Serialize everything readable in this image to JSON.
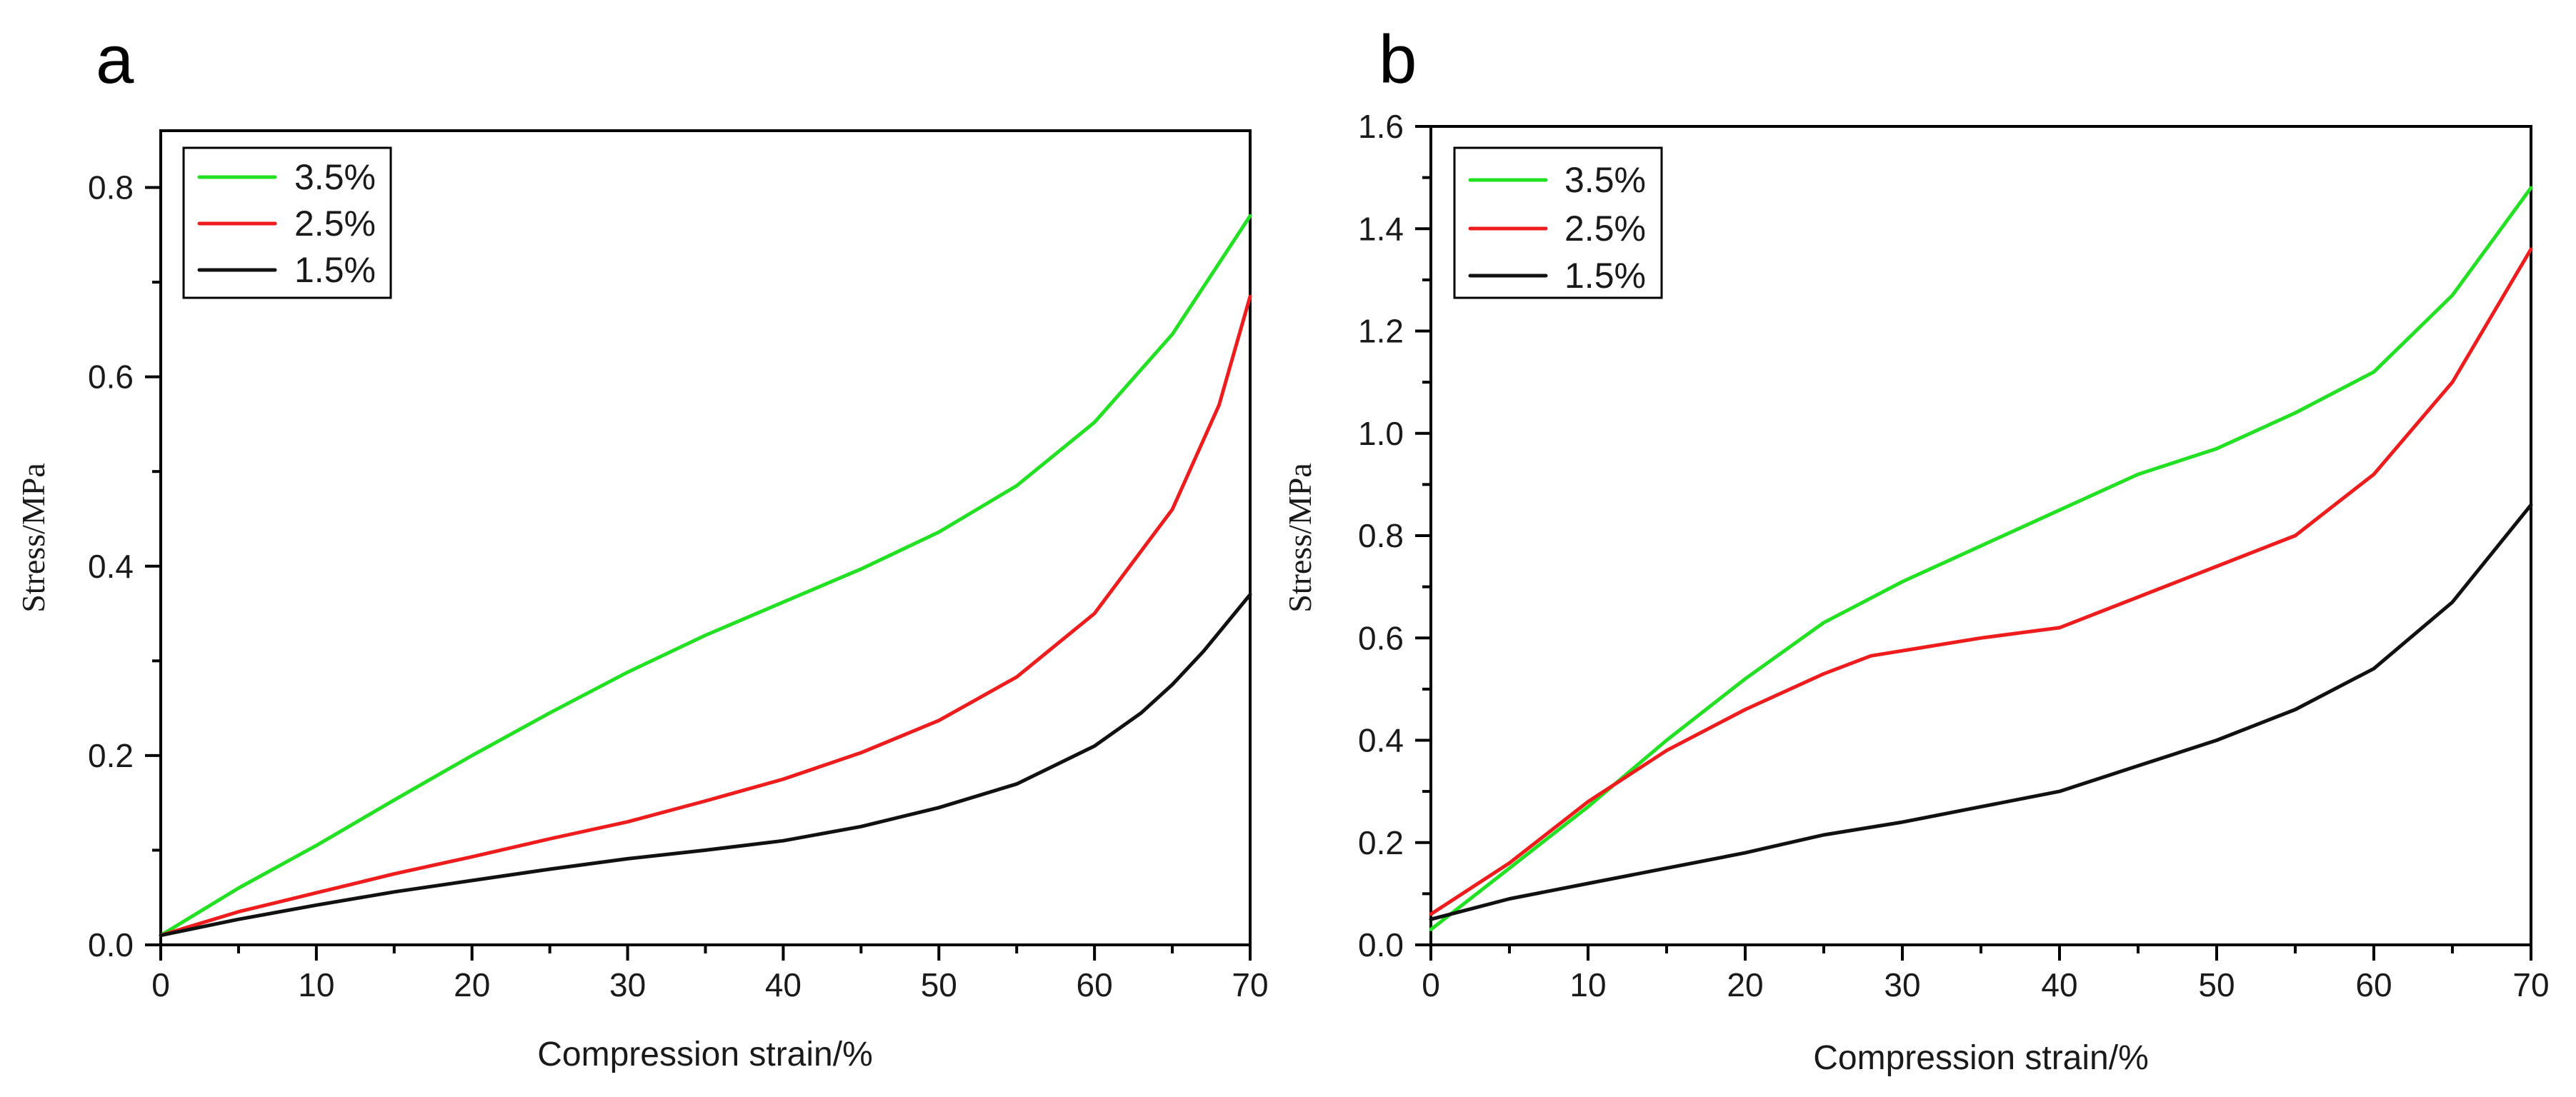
{
  "chart_data": [
    {
      "panel": "a",
      "type": "line",
      "xlabel": "Compression strain/%",
      "ylabel": "Stress/MPa",
      "xlim": [
        0,
        70
      ],
      "ylim": [
        0,
        0.86
      ],
      "xticks": [
        0,
        10,
        20,
        30,
        40,
        50,
        60,
        70
      ],
      "yticks": [
        0.0,
        0.2,
        0.4,
        0.6,
        0.8
      ],
      "xtick_labels": [
        "0",
        "10",
        "20",
        "30",
        "40",
        "50",
        "60",
        "70"
      ],
      "ytick_labels": [
        "0.0",
        "0.2",
        "0.4",
        "0.6",
        "0.8"
      ],
      "legend_position": "top-left",
      "series": [
        {
          "name": "3.5%",
          "color": "#22e022",
          "x": [
            0,
            5,
            10,
            15,
            20,
            25,
            30,
            35,
            40,
            45,
            50,
            55,
            60,
            65,
            70
          ],
          "y": [
            0.01,
            0.06,
            0.105,
            0.153,
            0.2,
            0.245,
            0.288,
            0.327,
            0.362,
            0.397,
            0.436,
            0.485,
            0.552,
            0.645,
            0.77
          ]
        },
        {
          "name": "2.5%",
          "color": "#ee1c1c",
          "x": [
            0,
            5,
            10,
            15,
            20,
            25,
            30,
            35,
            40,
            45,
            50,
            55,
            60,
            65,
            68,
            70
          ],
          "y": [
            0.01,
            0.035,
            0.055,
            0.075,
            0.093,
            0.112,
            0.13,
            0.152,
            0.175,
            0.203,
            0.237,
            0.283,
            0.35,
            0.46,
            0.57,
            0.685
          ]
        },
        {
          "name": "1.5%",
          "color": "#111111",
          "x": [
            0,
            5,
            10,
            15,
            20,
            25,
            30,
            35,
            40,
            45,
            50,
            55,
            60,
            63,
            65,
            67,
            70
          ],
          "y": [
            0.01,
            0.027,
            0.042,
            0.056,
            0.068,
            0.08,
            0.091,
            0.1,
            0.11,
            0.125,
            0.145,
            0.17,
            0.21,
            0.245,
            0.275,
            0.31,
            0.37
          ]
        }
      ]
    },
    {
      "panel": "b",
      "type": "line",
      "xlabel": "Compression strain/%",
      "ylabel": "Stress/MPa",
      "xlim": [
        0,
        70
      ],
      "ylim": [
        0,
        1.6
      ],
      "xticks": [
        0,
        10,
        20,
        30,
        40,
        50,
        60,
        70
      ],
      "yticks": [
        0.0,
        0.2,
        0.4,
        0.6,
        0.8,
        1.0,
        1.2,
        1.4,
        1.6
      ],
      "xtick_labels": [
        "0",
        "10",
        "20",
        "30",
        "40",
        "50",
        "60",
        "70"
      ],
      "ytick_labels": [
        "0.0",
        "0.2",
        "0.4",
        "0.6",
        "0.8",
        "1.0",
        "1.2",
        "1.4",
        "1.6"
      ],
      "legend_position": "top-left",
      "series": [
        {
          "name": "3.5%",
          "color": "#22e022",
          "x": [
            0,
            5,
            10,
            15,
            20,
            25,
            30,
            35,
            40,
            45,
            50,
            55,
            60,
            65,
            70
          ],
          "y": [
            0.03,
            0.15,
            0.27,
            0.4,
            0.52,
            0.63,
            0.71,
            0.78,
            0.85,
            0.92,
            0.97,
            1.04,
            1.12,
            1.27,
            1.48
          ]
        },
        {
          "name": "2.5%",
          "color": "#ee1c1c",
          "x": [
            0,
            5,
            10,
            15,
            20,
            25,
            28,
            30,
            35,
            40,
            45,
            50,
            55,
            60,
            65,
            70
          ],
          "y": [
            0.06,
            0.16,
            0.28,
            0.38,
            0.46,
            0.53,
            0.565,
            0.575,
            0.6,
            0.62,
            0.68,
            0.74,
            0.8,
            0.92,
            1.1,
            1.36
          ]
        },
        {
          "name": "1.5%",
          "color": "#111111",
          "x": [
            0,
            5,
            10,
            15,
            20,
            25,
            30,
            35,
            40,
            45,
            50,
            55,
            60,
            65,
            70
          ],
          "y": [
            0.05,
            0.09,
            0.12,
            0.15,
            0.18,
            0.215,
            0.24,
            0.27,
            0.3,
            0.35,
            0.4,
            0.46,
            0.54,
            0.67,
            0.86
          ]
        }
      ]
    }
  ]
}
